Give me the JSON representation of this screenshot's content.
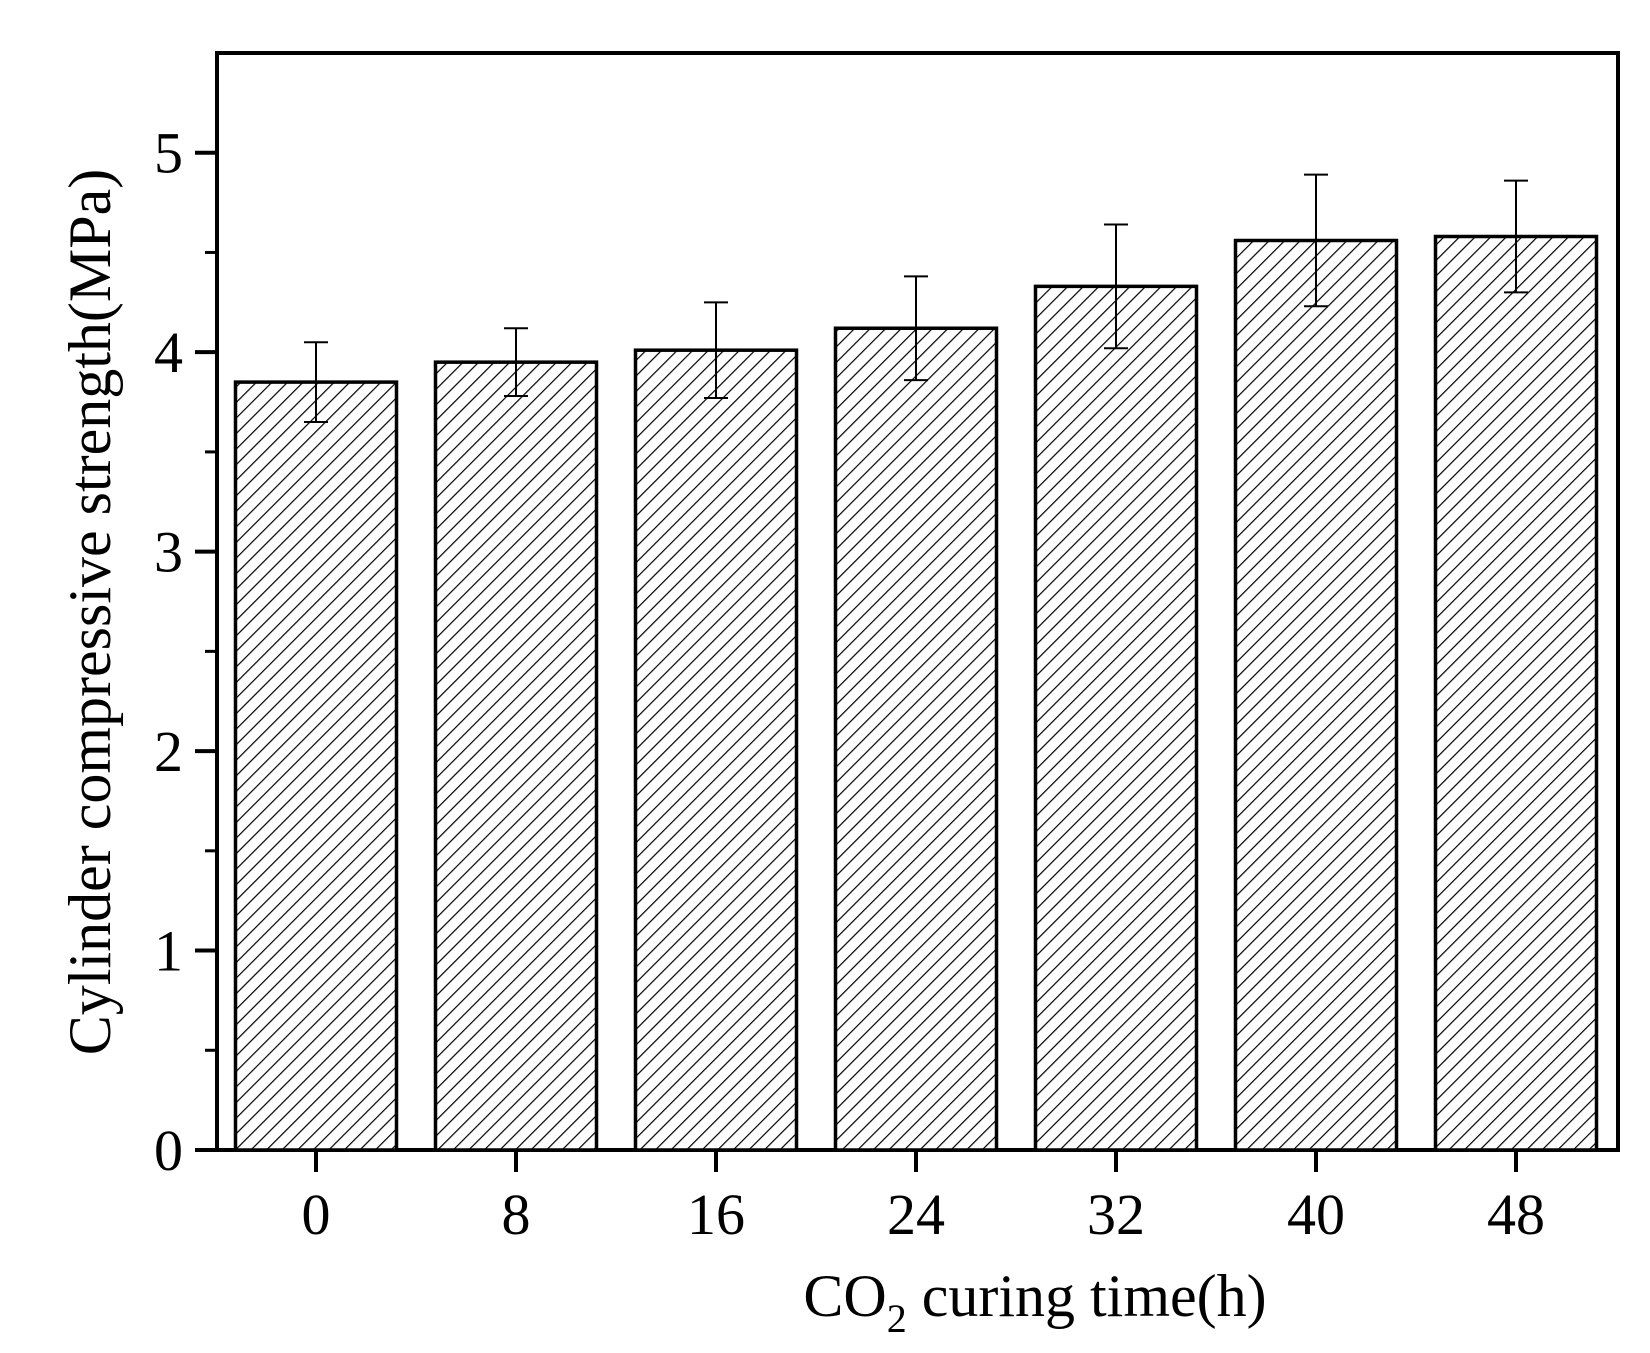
{
  "chart_data": {
    "type": "bar",
    "title": "",
    "xlabel": "CO2 curing time(h)",
    "xlabel_parts": {
      "main": "CO",
      "subscript": "2",
      "rest": " curing time(h)"
    },
    "ylabel": "Cylinder compressive strength(MPa)",
    "categories": [
      "0",
      "8",
      "16",
      "24",
      "32",
      "40",
      "48"
    ],
    "values": [
      3.85,
      3.95,
      4.01,
      4.12,
      4.33,
      4.56,
      4.58
    ],
    "error_bars": [
      0.2,
      0.17,
      0.24,
      0.26,
      0.31,
      0.33,
      0.28
    ],
    "ylim": [
      0,
      5.5
    ],
    "yticks": [
      "0",
      "1",
      "2",
      "3",
      "4",
      "5"
    ],
    "ytick_values": [
      0,
      1,
      2,
      3,
      4,
      5
    ],
    "bar_fill": "hatched",
    "grid": false,
    "colors": {
      "bar_edge": "#000000",
      "hatch": "#000000",
      "background": "#ffffff"
    }
  }
}
